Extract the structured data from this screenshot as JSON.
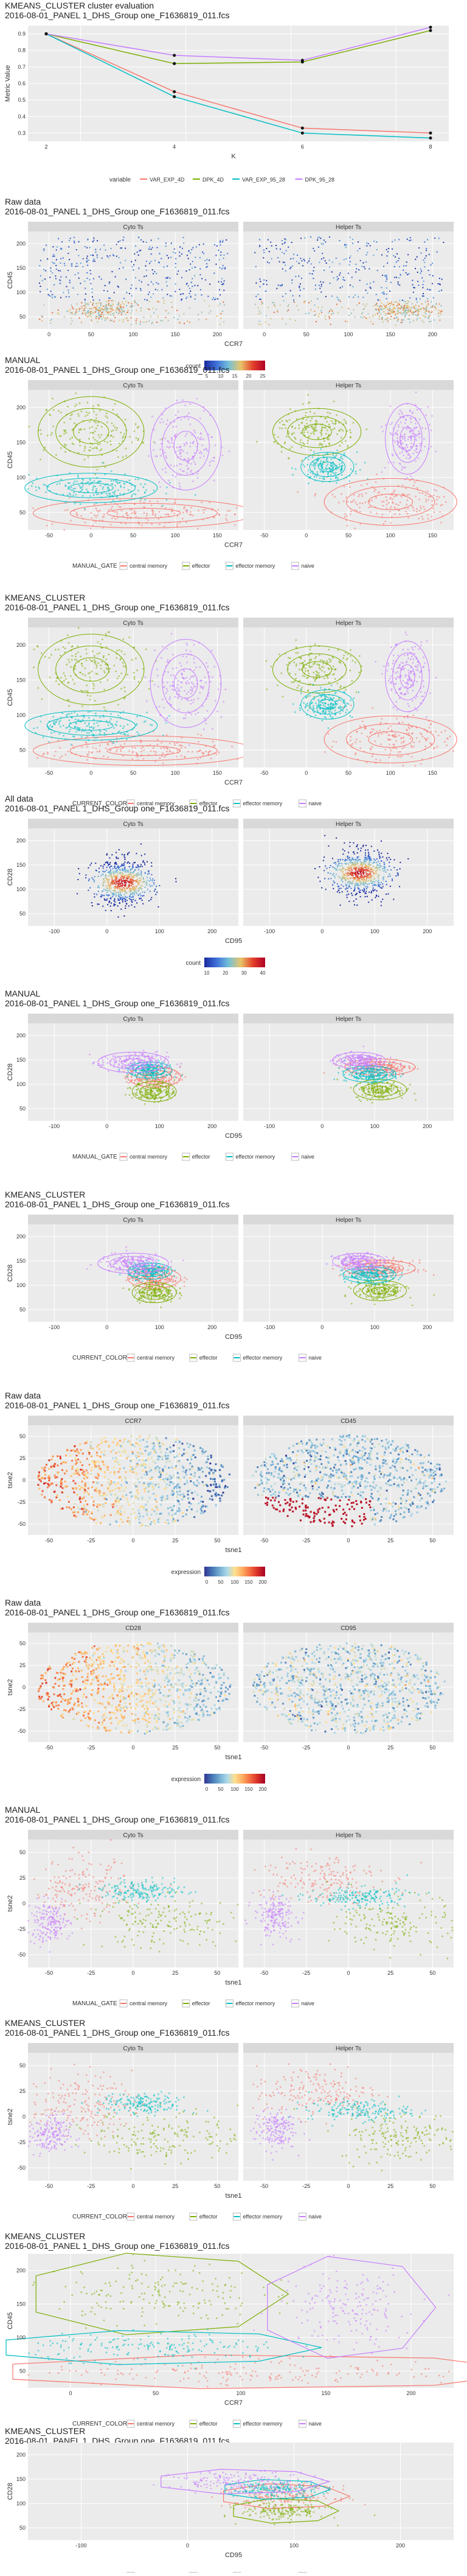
{
  "page": {
    "title_text_color": "#222222"
  },
  "colors": {
    "strip_bg": "#d9d9d9",
    "panel_bg": "#ebebeb",
    "grid": "#ffffff",
    "central_memory": "#f8766d",
    "effector": "#7cae00",
    "effector_memory": "#00bfc4",
    "naive": "#c77cff",
    "count_low": "#1f3bb3",
    "count_high": "#e31a1c",
    "hull_central_memory": "#7a2f2f",
    "hull_effector": "#3e5700",
    "hull_effector_memory": "#005f62",
    "hull_naive": "#4b1a7a"
  },
  "charts": [
    {
      "id": "kmeans-eval",
      "title": [
        "KMEANS_CLUSTER cluster evaluation",
        "2016-08-01_PANEL 1_DHS_Group one_F1636819_011.fcs"
      ],
      "chart_data": {
        "type": "line",
        "x": [
          2,
          4,
          6,
          8
        ],
        "xlabel": "K",
        "ylabel": "Metric Value",
        "x_ticks": [
          "2",
          "4",
          "6",
          "8"
        ],
        "y_ticks": [
          "0.3",
          "0.4",
          "0.5",
          "0.6",
          "0.7",
          "0.8",
          "0.9"
        ],
        "ylim": [
          0.25,
          0.95
        ],
        "legend_title": "variable",
        "series": [
          {
            "name": "VAR_EXP_4D",
            "color": "#f8766d",
            "values": [
              0.9,
              0.55,
              0.33,
              0.3
            ]
          },
          {
            "name": "DPK_4D",
            "color": "#7cae00",
            "values": [
              0.9,
              0.72,
              0.73,
              0.92
            ]
          },
          {
            "name": "VAR_EXP_95_28",
            "color": "#00bfc4",
            "values": [
              0.9,
              0.52,
              0.3,
              0.27
            ]
          },
          {
            "name": "DPK_95_28",
            "color": "#c77cff",
            "values": [
              0.9,
              0.77,
              0.74,
              0.94
            ]
          }
        ]
      }
    },
    {
      "id": "raw-ccr7-cd45",
      "title": [
        "Raw data",
        "2016-08-01_PANEL 1_DHS_Group one_F1636819_011.fcs"
      ],
      "chart_data": {
        "type": "scatter",
        "panels": [
          "Cyto Ts",
          "Helper Ts"
        ],
        "xlabel": "CCR7",
        "ylabel": "CD45",
        "x_ticks": [
          "0",
          "50",
          "100",
          "150",
          "200"
        ],
        "y_ticks": [
          "50",
          "100",
          "150",
          "200"
        ],
        "legend_title": "count",
        "legend_ticks": [
          "5",
          "10",
          "15",
          "20",
          "25"
        ],
        "color_scale": "count"
      }
    },
    {
      "id": "manual-ccr7-cd45",
      "title": [
        "MANUAL",
        "2016-08-01_PANEL 1_DHS_Group one_F1636819_011.fcs"
      ],
      "chart_data": {
        "type": "scatter",
        "panels": [
          "Cyto Ts",
          "Helper Ts"
        ],
        "xlabel": "CCR7",
        "ylabel": "CD45",
        "x_ticks": [
          "-50",
          "0",
          "50",
          "100",
          "150"
        ],
        "y_ticks": [
          "50",
          "100",
          "150",
          "200"
        ],
        "legend_title": "MANUAL_GATE",
        "legend_items": [
          "central memory",
          "effector",
          "effector memory",
          "naive"
        ]
      }
    },
    {
      "id": "kmeans-ccr7-cd45",
      "title": [
        "KMEANS_CLUSTER",
        "2016-08-01_PANEL 1_DHS_Group one_F1636819_011.fcs"
      ],
      "chart_data": {
        "type": "scatter",
        "panels": [
          "Cyto Ts",
          "Helper Ts"
        ],
        "xlabel": "CCR7",
        "ylabel": "CD45",
        "x_ticks": [
          "-50",
          "0",
          "50",
          "100",
          "150"
        ],
        "y_ticks": [
          "50",
          "100",
          "150",
          "200"
        ],
        "legend_title": "CURRENT_COLOR",
        "legend_items": [
          "central memory",
          "effector",
          "effector memory",
          "naive"
        ]
      }
    },
    {
      "id": "all-cd95-cd28",
      "title": [
        "All data",
        "2016-08-01_PANEL 1_DHS_Group one_F1636819_011.fcs"
      ],
      "chart_data": {
        "type": "scatter",
        "panels": [
          "Cyto Ts",
          "Helper Ts"
        ],
        "xlabel": "CD95",
        "ylabel": "CD28",
        "x_ticks": [
          "-100",
          "0",
          "100",
          "200"
        ],
        "y_ticks": [
          "50",
          "100",
          "150",
          "200"
        ],
        "legend_title": "count",
        "legend_ticks": [
          "10",
          "20",
          "30",
          "40"
        ],
        "color_scale": "count"
      }
    },
    {
      "id": "manual-cd95-cd28",
      "title": [
        "MANUAL",
        "2016-08-01_PANEL 1_DHS_Group one_F1636819_011.fcs"
      ],
      "chart_data": {
        "type": "scatter",
        "panels": [
          "Cyto Ts",
          "Helper Ts"
        ],
        "xlabel": "CD95",
        "ylabel": "CD28",
        "x_ticks": [
          "-100",
          "0",
          "100",
          "200"
        ],
        "y_ticks": [
          "50",
          "100",
          "150",
          "200"
        ],
        "legend_title": "MANUAL_GATE",
        "legend_items": [
          "central memory",
          "effector",
          "effector memory",
          "naive"
        ]
      }
    },
    {
      "id": "kmeans-cd95-cd28",
      "title": [
        "KMEANS_CLUSTER",
        "2016-08-01_PANEL 1_DHS_Group one_F1636819_011.fcs"
      ],
      "chart_data": {
        "type": "scatter",
        "panels": [
          "Cyto Ts",
          "Helper Ts"
        ],
        "xlabel": "CD95",
        "ylabel": "CD28",
        "x_ticks": [
          "-100",
          "0",
          "100",
          "200"
        ],
        "y_ticks": [
          "50",
          "100",
          "150",
          "200"
        ],
        "legend_title": "CURRENT_COLOR",
        "legend_items": [
          "central memory",
          "effector",
          "effector memory",
          "naive"
        ]
      }
    },
    {
      "id": "raw-tsne-ccr7-cd45",
      "title": [
        "Raw data",
        "2016-08-01_PANEL 1_DHS_Group one_F1636819_011.fcs"
      ],
      "chart_data": {
        "type": "heatmap",
        "panels": [
          "CCR7",
          "CD45"
        ],
        "xlabel": "tsne1",
        "ylabel": "tsne2",
        "x_ticks": [
          "-50",
          "-25",
          "0",
          "25",
          "50"
        ],
        "y_ticks": [
          "-50",
          "-25",
          "0",
          "25",
          "50"
        ],
        "legend_title": "expression",
        "legend_ticks": [
          "0",
          "50",
          "100",
          "150",
          "200"
        ],
        "color_scale": "expression"
      }
    },
    {
      "id": "raw-tsne-cd28-cd95",
      "title": [
        "Raw data",
        "2016-08-01_PANEL 1_DHS_Group one_F1636819_011.fcs"
      ],
      "chart_data": {
        "type": "heatmap",
        "panels": [
          "CD28",
          "CD95"
        ],
        "xlabel": "tsne1",
        "ylabel": "tsne2",
        "x_ticks": [
          "-50",
          "-25",
          "0",
          "25",
          "50"
        ],
        "y_ticks": [
          "-50",
          "-25",
          "0",
          "25",
          "50"
        ],
        "legend_title": "expression",
        "legend_ticks": [
          "0",
          "50",
          "100",
          "150",
          "200"
        ],
        "color_scale": "expression"
      }
    },
    {
      "id": "manual-tsne",
      "title": [
        "MANUAL",
        "2016-08-01_PANEL 1_DHS_Group one_F1636819_011.fcs"
      ],
      "chart_data": {
        "type": "scatter",
        "panels": [
          "Cyto Ts",
          "Helper Ts"
        ],
        "xlabel": "tsne1",
        "ylabel": "tsne2",
        "x_ticks": [
          "-50",
          "-25",
          "0",
          "25",
          "50"
        ],
        "y_ticks": [
          "-50",
          "-25",
          "0",
          "25",
          "50"
        ],
        "legend_title": "MANUAL_GATE",
        "legend_items": [
          "central memory",
          "effector",
          "effector memory",
          "naive"
        ]
      }
    },
    {
      "id": "kmeans-tsne",
      "title": [
        "KMEANS_CLUSTER",
        "2016-08-01_PANEL 1_DHS_Group one_F1636819_011.fcs"
      ],
      "chart_data": {
        "type": "scatter",
        "panels": [
          "Cyto Ts",
          "Helper Ts"
        ],
        "xlabel": "tsne1",
        "ylabel": "tsne2",
        "x_ticks": [
          "-50",
          "-25",
          "0",
          "25",
          "50"
        ],
        "y_ticks": [
          "-50",
          "-25",
          "0",
          "25",
          "50"
        ],
        "legend_title": "CURRENT_COLOR",
        "legend_items": [
          "central memory",
          "effector",
          "effector memory",
          "naive"
        ]
      }
    },
    {
      "id": "kmeans-hull-ccr7-cd45",
      "title": [
        "KMEANS_CLUSTER",
        "2016-08-01_PANEL 1_DHS_Group one_F1636819_011.fcs"
      ],
      "chart_data": {
        "type": "scatter",
        "panels": [],
        "xlabel": "CCR7",
        "ylabel": "CD45",
        "x_ticks": [
          "0",
          "50",
          "100",
          "150",
          "200"
        ],
        "y_ticks": [
          "50",
          "100",
          "150",
          "200"
        ],
        "legend_title": "CURRENT_COLOR",
        "legend_items": [
          "central memory",
          "effector",
          "effector memory",
          "naive"
        ]
      }
    },
    {
      "id": "kmeans-hull-cd95-cd28",
      "title": [
        "KMEANS_CLUSTER",
        "2016-08-01_PANEL 1_DHS_Group one_F1636819_011.fcs"
      ],
      "chart_data": {
        "type": "scatter",
        "panels": [],
        "xlabel": "CD95",
        "ylabel": "CD28",
        "x_ticks": [
          "-100",
          "0",
          "100",
          "200"
        ],
        "y_ticks": [
          "50",
          "100",
          "150",
          "200"
        ],
        "legend_title": "CURRENT_COLOR",
        "legend_items": [
          "central memory",
          "effector",
          "effector memory",
          "naive"
        ]
      }
    }
  ]
}
